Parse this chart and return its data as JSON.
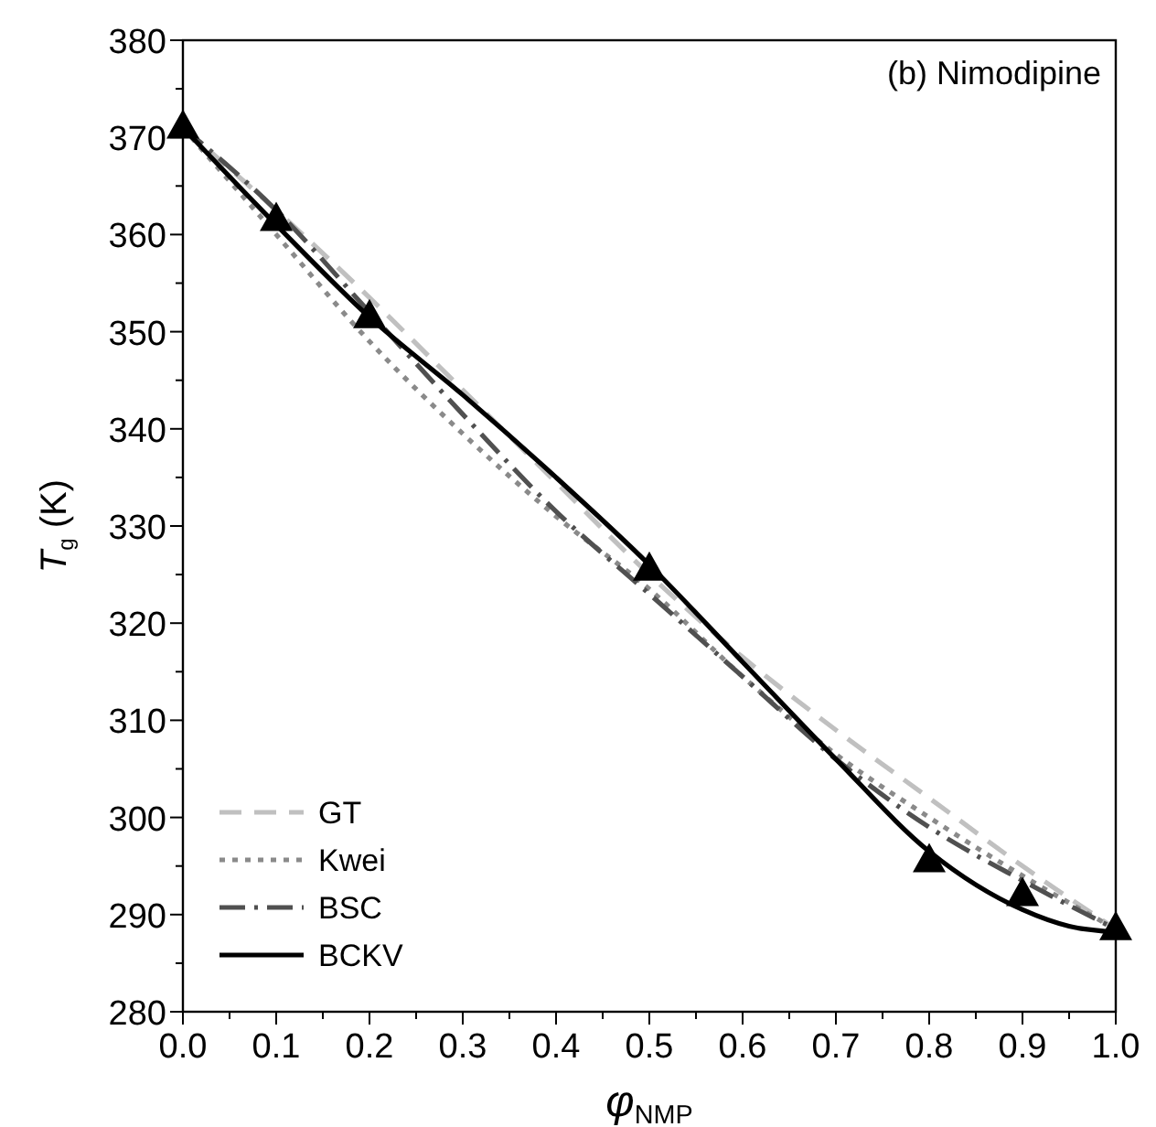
{
  "chart_data": {
    "type": "line",
    "title": "(b) Nimodipine",
    "xlabel": "φ$_{NMP}$",
    "ylabel": "T$_{g}$ (K)",
    "xlim": [
      0,
      1
    ],
    "ylim": [
      280,
      380
    ],
    "xticks": [
      {
        "value": 0,
        "label": "0.0"
      },
      {
        "value": 0.05,
        "label": null
      },
      {
        "value": 0.1,
        "label": "0.1"
      },
      {
        "value": 0.15,
        "label": null
      },
      {
        "value": 0.2,
        "label": "0.2"
      },
      {
        "value": 0.25,
        "label": null
      },
      {
        "value": 0.3,
        "label": "0.3"
      },
      {
        "value": 0.35,
        "label": null
      },
      {
        "value": 0.4,
        "label": "0.4"
      },
      {
        "value": 0.45,
        "label": null
      },
      {
        "value": 0.5,
        "label": "0.5"
      },
      {
        "value": 0.55,
        "label": null
      },
      {
        "value": 0.6,
        "label": "0.6"
      },
      {
        "value": 0.65,
        "label": null
      },
      {
        "value": 0.7,
        "label": "0.7"
      },
      {
        "value": 0.75,
        "label": null
      },
      {
        "value": 0.8,
        "label": "0.8"
      },
      {
        "value": 0.85,
        "label": null
      },
      {
        "value": 0.9,
        "label": "0.9"
      },
      {
        "value": 0.95,
        "label": null
      },
      {
        "value": 1,
        "label": "1.0"
      }
    ],
    "yticks": [
      280,
      {
        "value": 285,
        "label": null
      },
      290,
      {
        "value": 295,
        "label": null
      },
      300,
      {
        "value": 305,
        "label": null
      },
      310,
      {
        "value": 315,
        "label": null
      },
      320,
      {
        "value": 325,
        "label": null
      },
      330,
      {
        "value": 335,
        "label": null
      },
      340,
      {
        "value": 345,
        "label": null
      },
      350,
      {
        "value": 355,
        "label": null
      },
      360,
      {
        "value": 365,
        "label": null
      },
      370,
      {
        "value": 375,
        "label": null
      },
      380
    ],
    "grid": false,
    "legend": "bottom left",
    "series": [
      {
        "name": "GT",
        "color": "#c0c0c0",
        "line_style": "dashed",
        "x": [
          0,
          0.1,
          0.2,
          0.3,
          0.4,
          0.5,
          0.6,
          0.7,
          0.8,
          0.9,
          1
        ],
        "values": [
          371,
          362.5,
          353.5,
          344,
          334.5,
          325,
          316.5,
          309,
          302,
          295,
          288.5
        ]
      },
      {
        "name": "Kwei",
        "color": "#8a8a8a",
        "line_style": "dotted",
        "x": [
          0,
          0.1,
          0.2,
          0.3,
          0.4,
          0.5,
          0.6,
          0.7,
          0.8,
          0.9,
          1
        ],
        "values": [
          371,
          360,
          349,
          339.5,
          331,
          323.5,
          314.5,
          306.5,
          300,
          294,
          288.5
        ]
      },
      {
        "name": "BSC",
        "color": "#505050",
        "line_style": "dashdot",
        "x": [
          0,
          0.1,
          0.2,
          0.3,
          0.4,
          0.5,
          0.6,
          0.7,
          0.8,
          0.9,
          1
        ],
        "values": [
          371,
          362.5,
          352,
          341.5,
          331.5,
          323,
          314.5,
          306,
          299,
          293.5,
          288.5
        ]
      },
      {
        "name": "BCKV",
        "color": "#000000",
        "line_style": "solid",
        "x": [
          0,
          0.1,
          0.2,
          0.3,
          0.4,
          0.5,
          0.6,
          0.7,
          0.8,
          0.9,
          0.95,
          1
        ],
        "values": [
          371,
          361,
          351.5,
          343.5,
          335,
          326,
          316,
          306,
          296.5,
          290.5,
          288.8,
          288.2
        ]
      },
      {
        "type": "scatter",
        "color": "#000000",
        "marker": "triangle",
        "x": [
          0,
          0.1,
          0.2,
          0.5,
          0.8,
          0.9,
          1
        ],
        "values": [
          371,
          361.5,
          351.5,
          325.5,
          295.5,
          292,
          288.5
        ]
      }
    ]
  }
}
